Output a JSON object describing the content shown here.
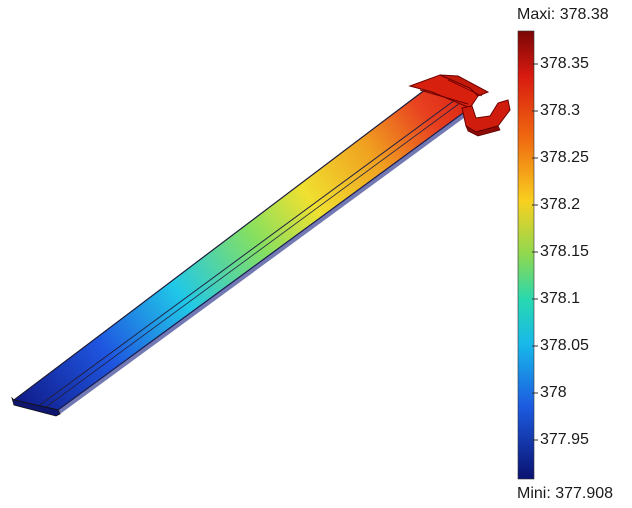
{
  "legend": {
    "max_prefix": "Maxi:",
    "max_value": "378.38",
    "min_prefix": "Mini:",
    "min_value": "377.908",
    "ticks": [
      "378.35",
      "378.3",
      "378.25",
      "378.2",
      "378.15",
      "378.1",
      "378.05",
      "378",
      "377.95"
    ],
    "colors": [
      "#0a1a7a",
      "#1546d8",
      "#18c8e8",
      "#3ed88a",
      "#d8e020",
      "#f0a010",
      "#e83818",
      "#8a0a0a"
    ]
  }
}
